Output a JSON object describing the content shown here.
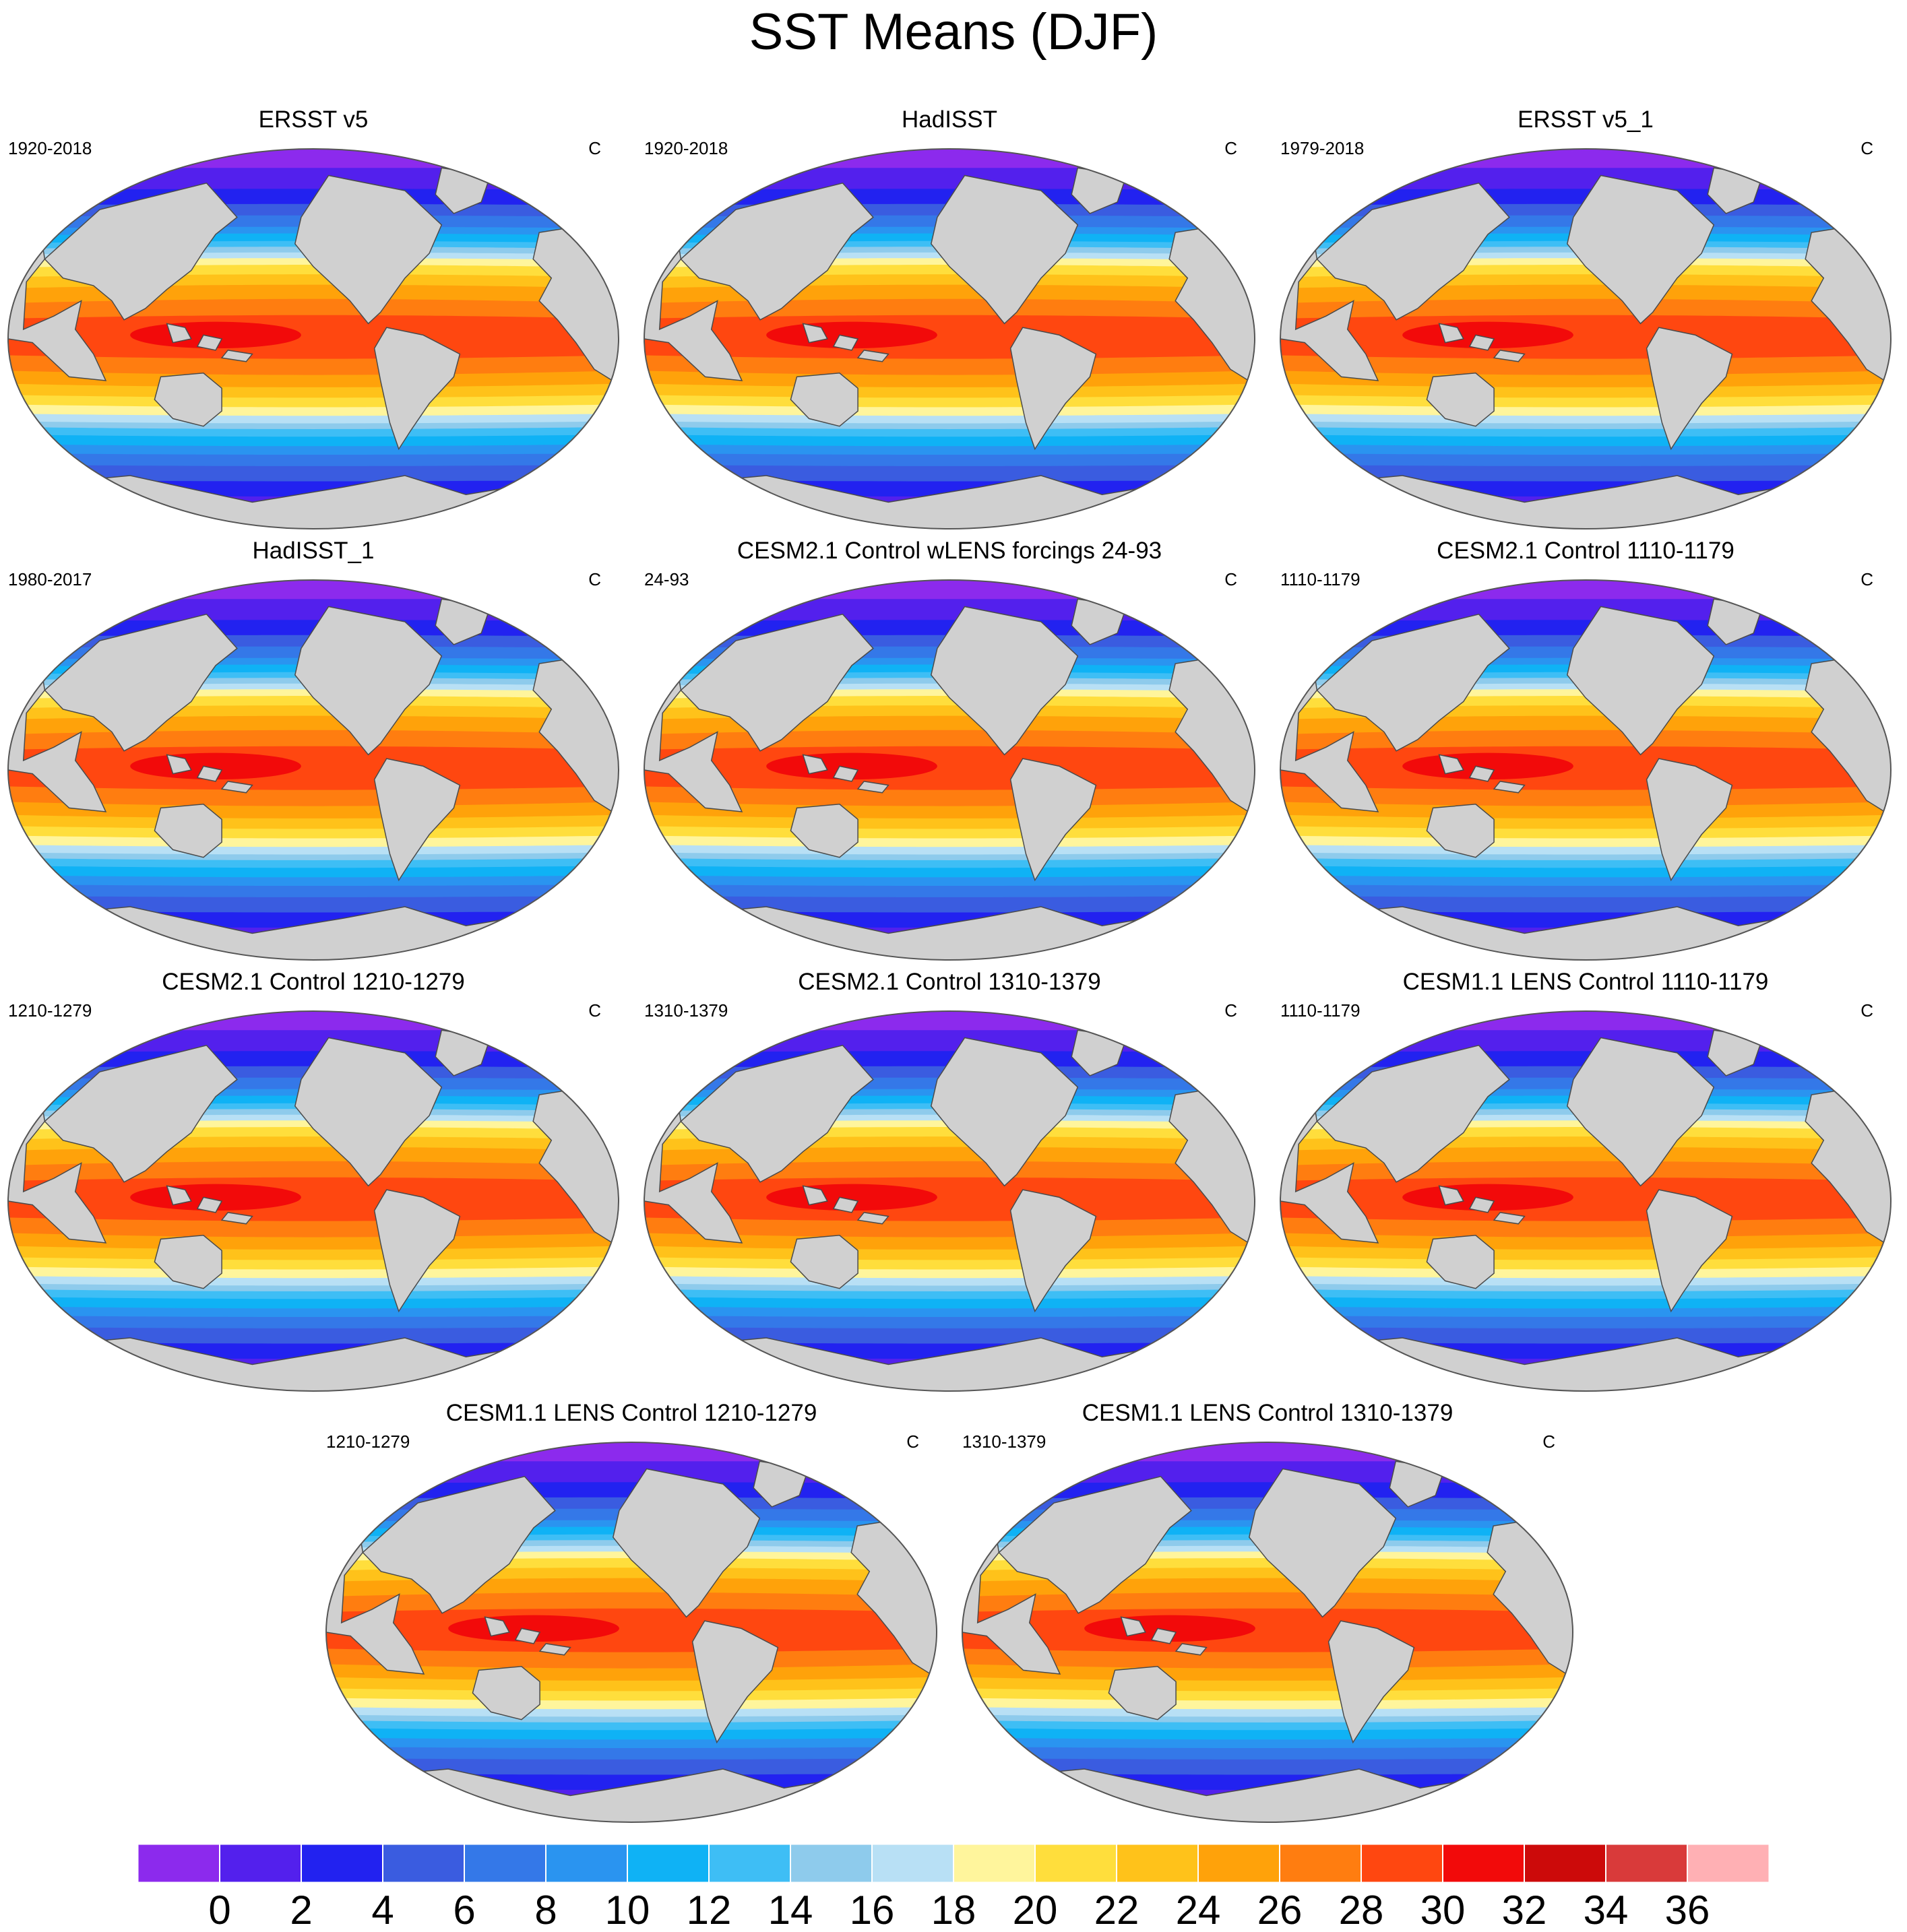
{
  "title": "SST Means (DJF)",
  "panels": [
    {
      "title": "ERSST v5",
      "left": "1920-2018",
      "right": "C"
    },
    {
      "title": "HadISST",
      "left": "1920-2018",
      "right": "C"
    },
    {
      "title": "ERSST v5_1",
      "left": "1979-2018",
      "right": "C"
    },
    {
      "title": "HadISST_1",
      "left": "1980-2017",
      "right": "C"
    },
    {
      "title": "CESM2.1 Control wLENS forcings 24-93",
      "left": "24-93",
      "right": "C"
    },
    {
      "title": "CESM2.1 Control 1110-1179",
      "left": "1110-1179",
      "right": "C"
    },
    {
      "title": "CESM2.1 Control 1210-1279",
      "left": "1210-1279",
      "right": "C"
    },
    {
      "title": "CESM2.1 Control 1310-1379",
      "left": "1310-1379",
      "right": "C"
    },
    {
      "title": "CESM1.1 LENS Control 1110-1179",
      "left": "1110-1179",
      "right": "C"
    },
    {
      "title": "CESM1.1 LENS Control 1210-1279",
      "left": "1210-1279",
      "right": "C"
    },
    {
      "title": "CESM1.1 LENS Control 1310-1379",
      "left": "1310-1379",
      "right": "C"
    }
  ],
  "colorbar": {
    "labels": [
      "0",
      "2",
      "4",
      "6",
      "8",
      "10",
      "12",
      "14",
      "16",
      "18",
      "20",
      "22",
      "24",
      "26",
      "28",
      "30",
      "32",
      "34",
      "36"
    ],
    "colors": [
      "#8c2aed",
      "#5320ed",
      "#2222f0",
      "#3a5ce0",
      "#3478e8",
      "#2a94f0",
      "#0fb2f5",
      "#3ebef5",
      "#8ecbec",
      "#b8e0f5",
      "#fff59c",
      "#ffde3c",
      "#ffc21a",
      "#ffa20a",
      "#ff7d10",
      "#ff4710",
      "#f20a0a",
      "#cc0a0a",
      "#d93a3a",
      "#ffb0b4"
    ]
  },
  "colors": {
    "land": "#d0d0d0",
    "coast": "#4a4a4a",
    "frame": "#555555"
  }
}
